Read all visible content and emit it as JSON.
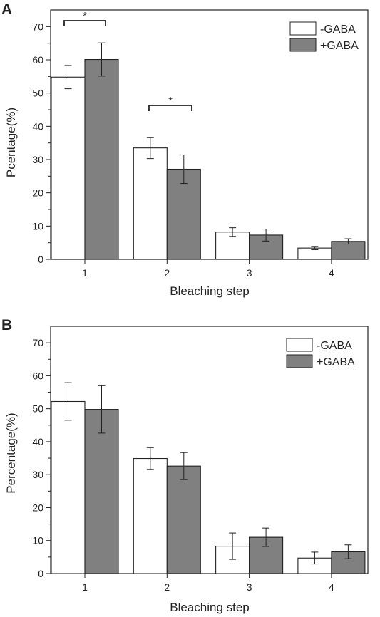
{
  "chart_data": [
    {
      "panel": "A",
      "type": "bar",
      "xlabel": "Bleaching step",
      "ylabel": "Pcentage(%)",
      "categories": [
        "1",
        "2",
        "3",
        "4"
      ],
      "ylim": [
        0,
        75
      ],
      "yticks": [
        0,
        10,
        20,
        30,
        40,
        50,
        60,
        70
      ],
      "series": [
        {
          "name": "-GABA",
          "values": [
            54.8,
            33.5,
            8.2,
            3.4
          ],
          "errors": [
            3.5,
            3.2,
            1.3,
            0.5
          ]
        },
        {
          "name": "+GABA",
          "values": [
            60.1,
            27.1,
            7.3,
            5.4
          ],
          "errors": [
            5.0,
            4.3,
            1.8,
            0.8
          ]
        }
      ],
      "annotations": [
        {
          "text": "*",
          "category": "1"
        },
        {
          "text": "*",
          "category": "2"
        }
      ],
      "legend": "top-right",
      "grid": false
    },
    {
      "panel": "B",
      "type": "bar",
      "xlabel": "Bleaching step",
      "ylabel": "Percentage(%)",
      "categories": [
        "1",
        "2",
        "3",
        "4"
      ],
      "ylim": [
        0,
        75
      ],
      "yticks": [
        0,
        10,
        20,
        30,
        40,
        50,
        60,
        70
      ],
      "series": [
        {
          "name": "-GABA",
          "values": [
            52.2,
            34.9,
            8.3,
            4.7
          ],
          "errors": [
            5.7,
            3.3,
            4.0,
            1.8
          ]
        },
        {
          "name": "+GABA",
          "values": [
            49.8,
            32.6,
            11.0,
            6.6
          ],
          "errors": [
            7.2,
            4.1,
            2.8,
            2.1
          ]
        }
      ],
      "annotations": [],
      "legend": "top-right",
      "grid": false
    }
  ],
  "colors": {
    "minus_gaba": "#ffffff",
    "plus_gaba": "#808080",
    "axis": "#222222"
  }
}
